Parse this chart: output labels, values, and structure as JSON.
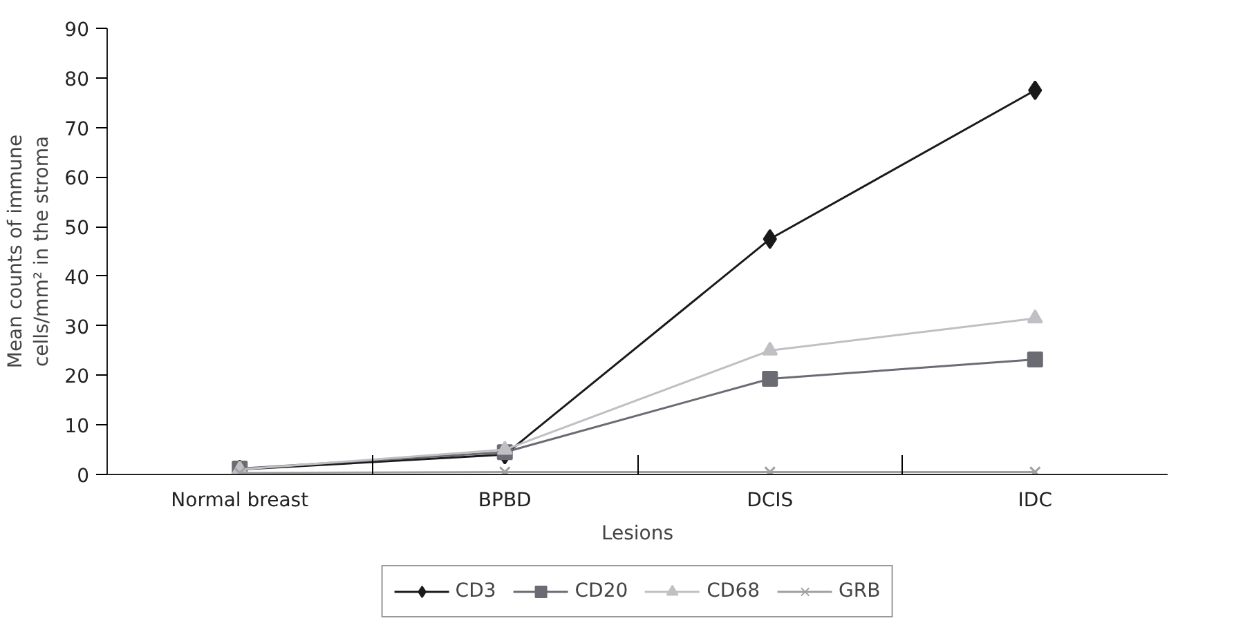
{
  "chart_data": {
    "type": "line",
    "xlabel": "Lesions",
    "ylabel": "Mean counts of immune\ncells/mm² in the stroma",
    "categories": [
      "Normal breast",
      "BPBD",
      "DCIS",
      "IDC"
    ],
    "ylim": [
      0,
      90
    ],
    "yticks": [
      0,
      10,
      20,
      30,
      40,
      50,
      60,
      70,
      80,
      90
    ],
    "grid": false,
    "legend": "bottom",
    "series": [
      {
        "name": "CD3",
        "color": "#1a1a1a",
        "marker": "diamond",
        "values": [
          1,
          4,
          47.5,
          77.5
        ]
      },
      {
        "name": "CD20",
        "color": "#6b6b73",
        "marker": "square",
        "values": [
          1.2,
          4.5,
          19.3,
          23.2
        ]
      },
      {
        "name": "CD68",
        "color": "#c0c0c4",
        "marker": "triangle",
        "values": [
          1,
          5,
          25,
          31.5
        ]
      },
      {
        "name": "GRB",
        "color": "#a0a0a0",
        "marker": "cross",
        "values": [
          0.3,
          0.5,
          0.5,
          0.5
        ]
      }
    ]
  }
}
